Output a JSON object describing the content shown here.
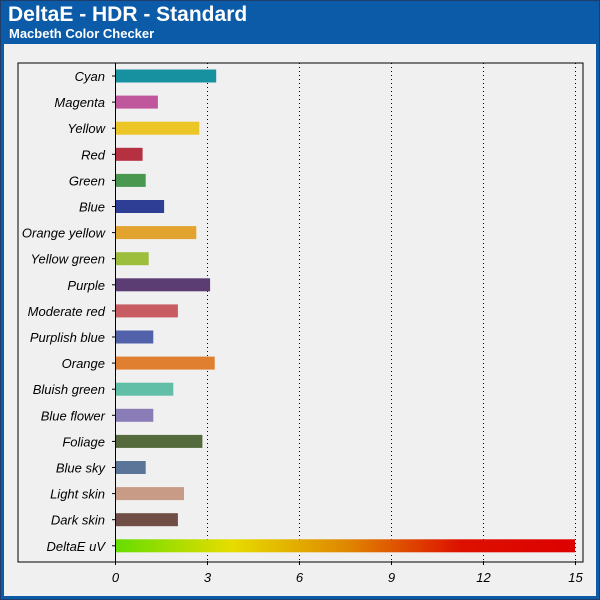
{
  "header": {
    "title": "DeltaE - HDR - Standard",
    "subtitle": "Macbeth Color Checker"
  },
  "chart_data": {
    "type": "bar",
    "orientation": "horizontal",
    "title": "DeltaE - HDR - Standard",
    "subtitle": "Macbeth Color Checker",
    "xlabel": "",
    "ylabel": "",
    "xlim": [
      0,
      15
    ],
    "x_ticks": [
      0,
      3,
      6,
      9,
      12,
      15
    ],
    "grid": "vertical dotted",
    "categories": [
      "Cyan",
      "Magenta",
      "Yellow",
      "Red",
      "Green",
      "Blue",
      "Orange yellow",
      "Yellow green",
      "Purple",
      "Moderate red",
      "Purplish blue",
      "Orange",
      "Bluish green",
      "Blue flower",
      "Foliage",
      "Blue sky",
      "Light skin",
      "Dark skin",
      "DeltaE uV"
    ],
    "values": [
      3.3,
      1.4,
      2.75,
      0.9,
      1.0,
      1.6,
      2.65,
      1.1,
      3.1,
      2.05,
      1.25,
      3.25,
      1.9,
      1.25,
      2.85,
      1.0,
      2.25,
      2.05,
      15
    ],
    "colors": [
      "#17909f",
      "#c0579d",
      "#ecc626",
      "#b53142",
      "#4a974f",
      "#2e3e94",
      "#e3a42f",
      "#9dbd3c",
      "#5b3c73",
      "#c95c62",
      "#5262aa",
      "#df7f2f",
      "#61bfa8",
      "#8a7cb6",
      "#556a3c",
      "#5b7598",
      "#c89b87",
      "#704e45",
      "gradient"
    ],
    "gradient_stops": [
      "#66dd00",
      "#e6dd00",
      "#e08800",
      "#dd1100",
      "#dd0000"
    ]
  }
}
